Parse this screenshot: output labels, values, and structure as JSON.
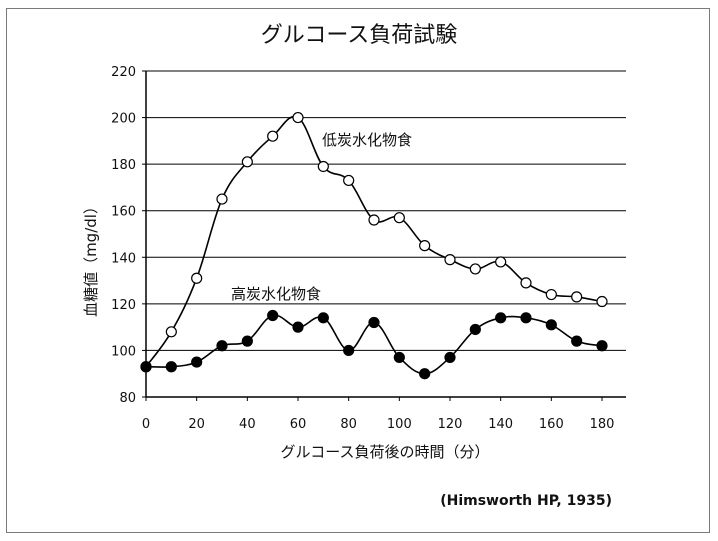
{
  "chart_data": {
    "type": "line",
    "title": "グルコース負荷試験",
    "xlabel": "グルコース負荷後の時間（分）",
    "ylabel": "血糖値（mg/dl）",
    "xlim": [
      0,
      180
    ],
    "ylim": [
      80,
      220
    ],
    "x_ticks": [
      0,
      20,
      40,
      60,
      80,
      100,
      120,
      140,
      160,
      180
    ],
    "y_ticks": [
      80,
      100,
      120,
      140,
      160,
      180,
      200,
      220
    ],
    "grid": "horizontal",
    "series": [
      {
        "name": "低炭水化物食",
        "marker": "open-circle",
        "x": [
          0,
          10,
          20,
          30,
          40,
          50,
          60,
          70,
          80,
          90,
          100,
          110,
          120,
          130,
          140,
          150,
          160,
          170,
          180
        ],
        "values": [
          93,
          108,
          131,
          165,
          181,
          192,
          200,
          179,
          173,
          156,
          157,
          145,
          139,
          135,
          138,
          129,
          124,
          123,
          121
        ]
      },
      {
        "name": "高炭水化物食",
        "marker": "filled-circle",
        "x": [
          0,
          10,
          20,
          30,
          40,
          50,
          60,
          70,
          80,
          90,
          100,
          110,
          120,
          130,
          140,
          150,
          160,
          170,
          180
        ],
        "values": [
          93,
          93,
          95,
          102,
          104,
          115,
          110,
          114,
          100,
          112,
          97,
          90,
          97,
          109,
          114,
          114,
          111,
          104,
          102
        ]
      }
    ],
    "source_note": "(Himsworth HP, 1935)"
  },
  "colors": {
    "line": "#000000",
    "grid": "#000000",
    "open_fill": "#ffffff",
    "filled_fill": "#000000"
  }
}
